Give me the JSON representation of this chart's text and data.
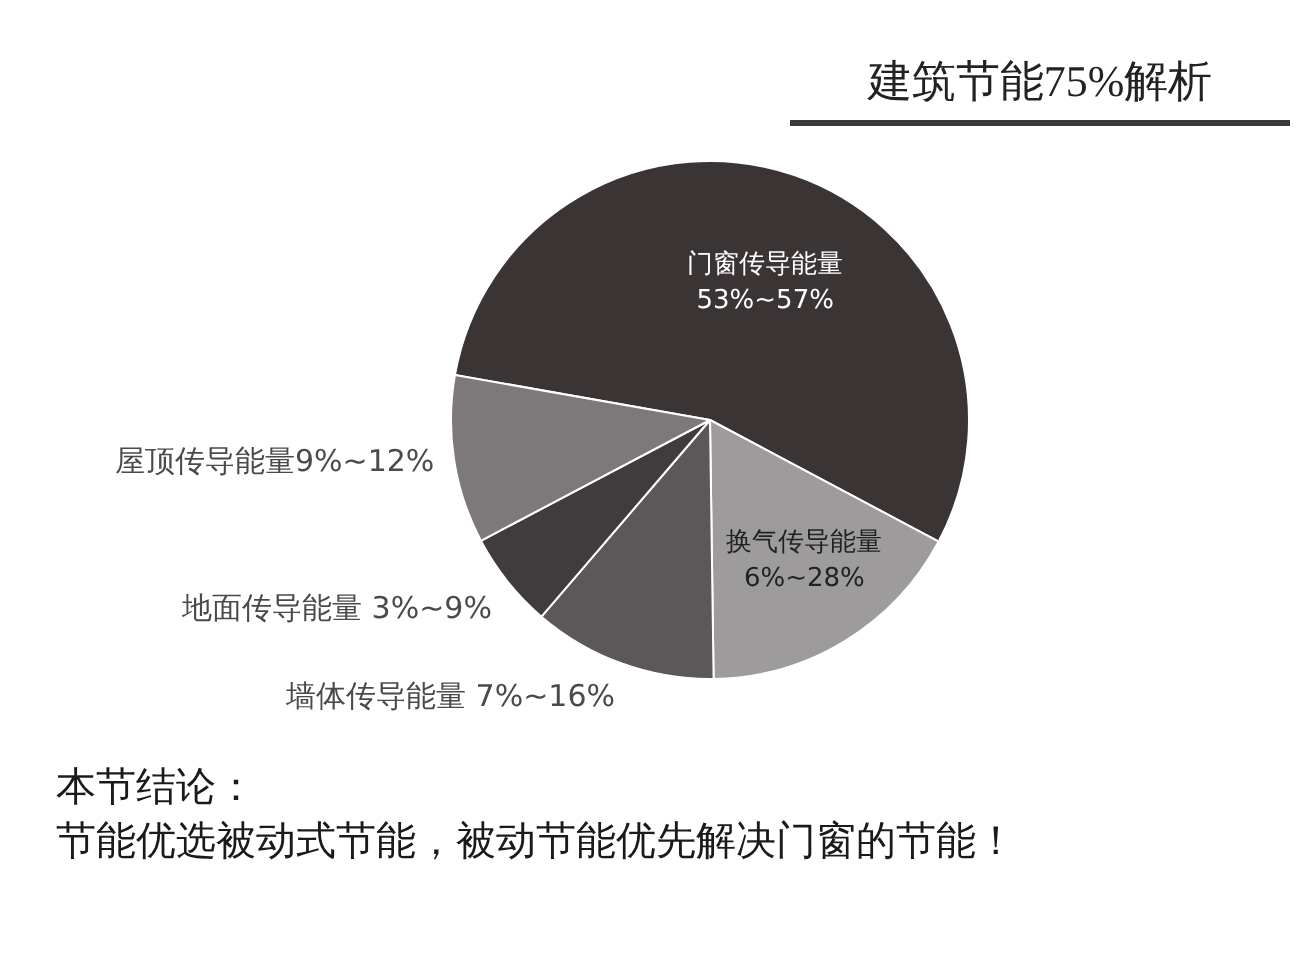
{
  "chart_data": {
    "type": "pie",
    "title": "建筑节能75%解析",
    "categories": [
      "门窗传导能量 53%~57%",
      "换气传导能量 6%~28%",
      "墙体传导能量 7%~16%",
      "地面传导能量 3%~9%",
      "屋顶传导能量9%~12%"
    ],
    "values": [
      55,
      17,
      11.5,
      6,
      10.5
    ],
    "colors": [
      "#3b3435",
      "#9e9b9c",
      "#5c5758",
      "#403b3c",
      "#7d7879"
    ],
    "annotations": [
      "本节结论：",
      "节能优选被动式节能，被动节能优先解决门窗的节能！"
    ]
  }
}
